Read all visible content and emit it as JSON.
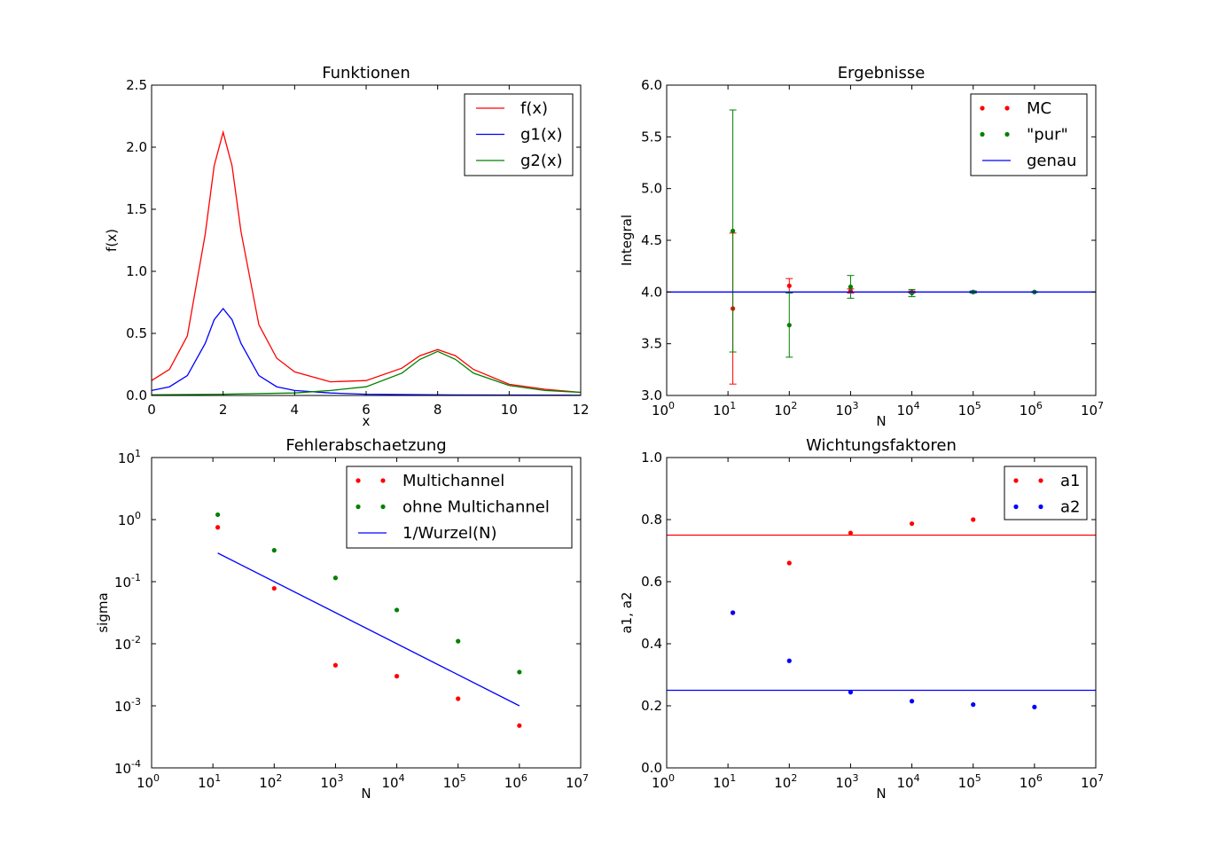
{
  "colors": {
    "red": "#ff0000",
    "blue": "#0000ff",
    "green": "#008000"
  },
  "chart_data": [
    {
      "type": "line",
      "title": "Funktionen",
      "xlabel": "x",
      "ylabel": "f(x)",
      "xlim": [
        0,
        12
      ],
      "ylim": [
        0,
        2.5
      ],
      "xticks": [
        "0",
        "2",
        "4",
        "6",
        "8",
        "10",
        "12"
      ],
      "yticks": [
        "0.0",
        "0.5",
        "1.0",
        "1.5",
        "2.0",
        "2.5"
      ],
      "legend_position": "top-right",
      "series": [
        {
          "name": "f(x)",
          "color": "#ff0000",
          "x": [
            0,
            0.5,
            1,
            1.5,
            1.75,
            2,
            2.25,
            2.5,
            3,
            3.5,
            4,
            5,
            6,
            7,
            7.5,
            8,
            8.5,
            9,
            10,
            11,
            12
          ],
          "y": [
            0.12,
            0.21,
            0.48,
            1.3,
            1.85,
            2.12,
            1.85,
            1.32,
            0.57,
            0.3,
            0.19,
            0.11,
            0.12,
            0.22,
            0.32,
            0.37,
            0.32,
            0.21,
            0.09,
            0.05,
            0.025
          ]
        },
        {
          "name": "g1(x)",
          "color": "#0000ff",
          "x": [
            0,
            0.5,
            1,
            1.5,
            1.75,
            2,
            2.25,
            2.5,
            3,
            3.5,
            4,
            5,
            6,
            8,
            10,
            12
          ],
          "y": [
            0.04,
            0.07,
            0.16,
            0.42,
            0.61,
            0.7,
            0.61,
            0.42,
            0.16,
            0.07,
            0.04,
            0.02,
            0.01,
            0.005,
            0.003,
            0.002
          ]
        },
        {
          "name": "g2(x)",
          "color": "#008000",
          "x": [
            0,
            2,
            4,
            5,
            6,
            7,
            7.5,
            8,
            8.5,
            9,
            10,
            11,
            12
          ],
          "y": [
            0.005,
            0.01,
            0.02,
            0.04,
            0.07,
            0.18,
            0.29,
            0.355,
            0.29,
            0.18,
            0.08,
            0.04,
            0.025
          ]
        }
      ]
    },
    {
      "type": "scatter",
      "title": "Ergebnisse",
      "xlabel": "N",
      "ylabel": "Integral",
      "xscale": "log",
      "xlim": [
        1,
        10000000
      ],
      "ylim": [
        3.0,
        6.0
      ],
      "yticks": [
        "3.0",
        "3.5",
        "4.0",
        "4.5",
        "5.0",
        "5.5",
        "6.0"
      ],
      "legend_position": "top-right",
      "series": [
        {
          "name": "MC",
          "color": "#ff0000",
          "x": [
            12,
            100,
            1000,
            10000,
            100000,
            1000000
          ],
          "y": [
            3.84,
            4.06,
            4.01,
            4.0,
            4.0,
            4.0
          ],
          "err": [
            0.73,
            0.07,
            0.02,
            0.01,
            0.005,
            0.002
          ]
        },
        {
          "name": "\"pur\"",
          "color": "#008000",
          "x": [
            12,
            100,
            1000,
            10000,
            100000,
            1000000
          ],
          "y": [
            4.59,
            3.68,
            4.05,
            3.99,
            4.0,
            4.0
          ],
          "err": [
            1.17,
            0.31,
            0.11,
            0.035,
            0.011,
            0.004
          ]
        },
        {
          "name": "genau",
          "color": "#0000ff",
          "x": [
            1,
            10000000
          ],
          "y": [
            4.0,
            4.0
          ]
        }
      ]
    },
    {
      "type": "scatter",
      "title": "Fehlerabschaetzung",
      "xlabel": "N",
      "ylabel": "sigma",
      "xscale": "log",
      "yscale": "log",
      "xlim": [
        1,
        10000000
      ],
      "ylim": [
        0.0001,
        10
      ],
      "legend_position": "top-right",
      "series": [
        {
          "name": "Multichannel",
          "color": "#ff0000",
          "x": [
            12,
            100,
            1000,
            10000,
            100000,
            1000000
          ],
          "y": [
            0.75,
            0.078,
            0.0045,
            0.003,
            0.0013,
            0.00048
          ]
        },
        {
          "name": "ohne Multichannel",
          "color": "#008000",
          "x": [
            12,
            100,
            1000,
            10000,
            100000,
            1000000
          ],
          "y": [
            1.2,
            0.32,
            0.115,
            0.035,
            0.011,
            0.0035
          ]
        },
        {
          "name": "1/Wurzel(N)",
          "color": "#0000ff",
          "x": [
            12,
            1000000
          ],
          "y": [
            0.289,
            0.001
          ]
        }
      ]
    },
    {
      "type": "scatter",
      "title": "Wichtungsfaktoren",
      "xlabel": "N",
      "ylabel": "a1, a2",
      "xscale": "log",
      "xlim": [
        1,
        10000000
      ],
      "ylim": [
        0.0,
        1.0
      ],
      "yticks": [
        "0.0",
        "0.2",
        "0.4",
        "0.6",
        "0.8",
        "1.0"
      ],
      "legend_position": "top-right",
      "hlines": [
        {
          "y": 0.75,
          "color": "#ff0000"
        },
        {
          "y": 0.25,
          "color": "#0000ff"
        }
      ],
      "series": [
        {
          "name": "a1",
          "color": "#ff0000",
          "x": [
            12,
            100,
            1000,
            10000,
            100000
          ],
          "y": [
            0.5,
            0.66,
            0.757,
            0.787,
            0.8
          ]
        },
        {
          "name": "a2",
          "color": "#0000ff",
          "x": [
            12,
            100,
            1000,
            10000,
            100000,
            1000000
          ],
          "y": [
            0.5,
            0.345,
            0.244,
            0.215,
            0.204,
            0.196
          ]
        }
      ]
    }
  ]
}
